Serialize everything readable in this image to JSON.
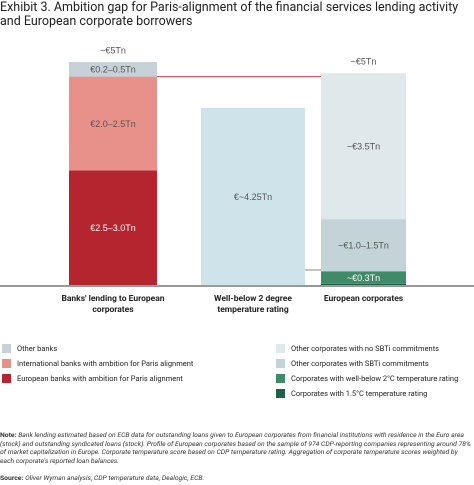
{
  "title": "Exhibit 3. Ambition gap for Paris-alignment of the financial services lending activity and European corporate borrowers",
  "chart_data": {
    "type": "stacked-bar",
    "categories": [
      "Banks' lending to European corporates",
      "Well-below 2 degree temperature rating",
      "European corporates"
    ],
    "total_labels": [
      "~€5Tn",
      null,
      "~€5Tn"
    ],
    "series": [
      {
        "name": "Other banks",
        "color": "#c6d2d7",
        "values": [
          0.35,
          null,
          null
        ],
        "value_labels": [
          "€0.2–0.5Tn",
          null,
          null
        ]
      },
      {
        "name": "International banks with ambition for Paris alignment",
        "color": "#e8908a",
        "values": [
          2.25,
          null,
          null
        ],
        "value_labels": [
          "€2.0–2.5Tn",
          null,
          null
        ]
      },
      {
        "name": "European banks with ambition for Paris alignment",
        "color": "#b5252f",
        "values": [
          2.75,
          null,
          null
        ],
        "value_labels": [
          "€2.5–3.0Tn",
          null,
          null
        ]
      },
      {
        "color": "#cfe4ea",
        "values": [
          null,
          4.25,
          null
        ],
        "value_labels": [
          null,
          "€~4.25Tn",
          null
        ]
      },
      {
        "name": "Other corporates with no SBTi commitments",
        "color": "#dfe9ec",
        "values": [
          null,
          null,
          3.5
        ],
        "value_labels": [
          null,
          null,
          "~€3.5Tn"
        ]
      },
      {
        "name": "Other corporates with SBTi commitments",
        "color": "#c3d3d8",
        "values": [
          null,
          null,
          1.25
        ],
        "value_labels": [
          null,
          null,
          "~€1.0–1.5Tn"
        ]
      },
      {
        "name": "Corporates with well-below 2°C  temperature rating",
        "color": "#3f8a68",
        "values": [
          null,
          null,
          0.3
        ],
        "value_labels": [
          null,
          null,
          "~€0.3Tn"
        ]
      },
      {
        "name": "Corporates with 1.5°C  temperature rating",
        "color": "#1d6246",
        "values": [
          null,
          null,
          0.03
        ],
        "value_labels": [
          null,
          null,
          null
        ]
      }
    ]
  },
  "note_label": "Note:",
  "note": "Bank lending estimated based on ECB data for outstanding loans given to European corporates from financial institutions with residence in the Euro area (stock) and outstanding syndicated loans (stock). Profile of European corporates based on the sample of 974 CDP-reporting companies representing around 78% of market capitalization in Europe. Corporate temperature score based on CDP temperature rating. Aggregation of corporate temperature scores weighted by each corporate's reported loan balances.",
  "source_label": "Source:",
  "source": "Oliver Wyman analysis, CDP temperature data, Dealogic, ECB."
}
